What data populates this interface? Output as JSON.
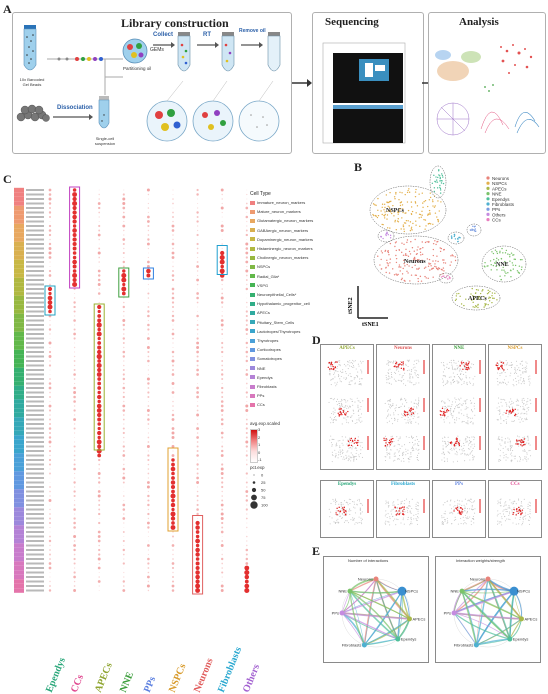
{
  "panels": {
    "a": "A",
    "b": "B",
    "c": "C",
    "d": "D",
    "e": "E"
  },
  "panel_a": {
    "library_title": "Library construction",
    "sequencing_title": "Sequencing",
    "analysis_title": "Analysis",
    "beads_label": "10x Barcoded Gel Beads",
    "dissociation_label": "Dissociation",
    "single_cell_label": "Single-cell suspension",
    "collect_label": "Collect",
    "gems_label": "GEMs",
    "partitioning_label": "Partitioning oil",
    "rt_label": "RT",
    "remove_oil_label": "Remove oil"
  },
  "panel_b": {
    "legend": [
      {
        "label": "Neurons",
        "color": "#e8837a"
      },
      {
        "label": "NSPCs",
        "color": "#e3b04b"
      },
      {
        "label": "APECs",
        "color": "#a8b84a"
      },
      {
        "label": "NNE",
        "color": "#7ac36a"
      },
      {
        "label": "Ependys",
        "color": "#4fbf9a"
      },
      {
        "label": "Fibroblasts",
        "color": "#4fb0d0"
      },
      {
        "label": "PPs",
        "color": "#7a9be0"
      },
      {
        "label": "Others",
        "color": "#c58be0"
      },
      {
        "label": "CCs",
        "color": "#e87fbf"
      }
    ],
    "cluster_labels": [
      "NSPCs",
      "Neurons",
      "NNE",
      "APECs"
    ],
    "xaxis": "tSNE1",
    "yaxis": "tSNE2"
  },
  "panel_c": {
    "xlabels": [
      {
        "label": "Ependys",
        "color": "#2aa77a"
      },
      {
        "label": "CCs",
        "color": "#e0478f"
      },
      {
        "label": "APECs",
        "color": "#8fa530"
      },
      {
        "label": "NNE",
        "color": "#3a9d3a"
      },
      {
        "label": "PPs",
        "color": "#5b7fe0"
      },
      {
        "label": "NSPCs",
        "color": "#d89a2a"
      },
      {
        "label": "Neurons",
        "color": "#e05a5a"
      },
      {
        "label": "Fibroblasts",
        "color": "#2aa8d0"
      },
      {
        "label": "Others",
        "color": "#a260d0"
      }
    ],
    "legend_title": "Cell Type",
    "legend": [
      {
        "label": "Immature_neuron_markers",
        "color": "#f08080"
      },
      {
        "label": "Mature_neuron_markers",
        "color": "#ee9a70"
      },
      {
        "label": "Glutamatergic_neuron_markers",
        "color": "#e8a860"
      },
      {
        "label": "GABAergic_neuron_markers",
        "color": "#d9b050"
      },
      {
        "label": "Dopaminergic_neuron_markers",
        "color": "#c8b845"
      },
      {
        "label": "Histaminergic_neuron_markers",
        "color": "#b0b840"
      },
      {
        "label": "Cholinergic_neuron_markers",
        "color": "#98b840"
      },
      {
        "label": "NSPCs",
        "color": "#80b845"
      },
      {
        "label": "Radial_Glia*",
        "color": "#62b84a"
      },
      {
        "label": "VSPG",
        "color": "#45b455"
      },
      {
        "label": "Neuroepithelial_Cells*",
        "color": "#35b070"
      },
      {
        "label": "Hypothalamic_progenitor_cell",
        "color": "#30ad88"
      },
      {
        "label": "APECs",
        "color": "#30aaa0"
      },
      {
        "label": "Pituitary_Stem_Cells",
        "color": "#35a8b8"
      },
      {
        "label": "Lactotropes/Thyrotropes",
        "color": "#3aa5cc"
      },
      {
        "label": "Thyrotropes",
        "color": "#4aa0d8"
      },
      {
        "label": "Corticotropes",
        "color": "#6098e0"
      },
      {
        "label": "Somatotropes",
        "color": "#8090e0"
      },
      {
        "label": "NNE",
        "color": "#9c88dc"
      },
      {
        "label": "Ependys",
        "color": "#b482d6"
      },
      {
        "label": "Fibroblasts",
        "color": "#c87ccc"
      },
      {
        "label": "PPs",
        "color": "#d878bd"
      },
      {
        "label": "CCs",
        "color": "#e474aa"
      }
    ],
    "scale_title": "avg.exp.scaled",
    "scale_ticks": [
      "3",
      "2",
      "1",
      "0",
      "-1"
    ],
    "size_title": "pct.exp",
    "size_ticks": [
      "0",
      "25",
      "50",
      "75",
      "100"
    ]
  },
  "panel_d": {
    "titles": [
      "APECs",
      "Neurons",
      "NNE",
      "NSPCs"
    ],
    "title_colors": [
      "#8fa530",
      "#e05a5a",
      "#3a9d3a",
      "#d89a2a"
    ],
    "bottom_titles": [
      "Ependys",
      "Fibroblasts",
      "PPs",
      "CCs"
    ],
    "bottom_colors": [
      "#2aa77a",
      "#2aa8d0",
      "#5b7fe0",
      "#e0478f"
    ]
  },
  "panel_e": {
    "left_title": "Number of interactions",
    "right_title": "Interaction weights/strength",
    "nodes": [
      "Neurons",
      "NSPCs",
      "APECs",
      "Ependys",
      "Fibroblasts",
      "PPs",
      "NNE"
    ]
  }
}
